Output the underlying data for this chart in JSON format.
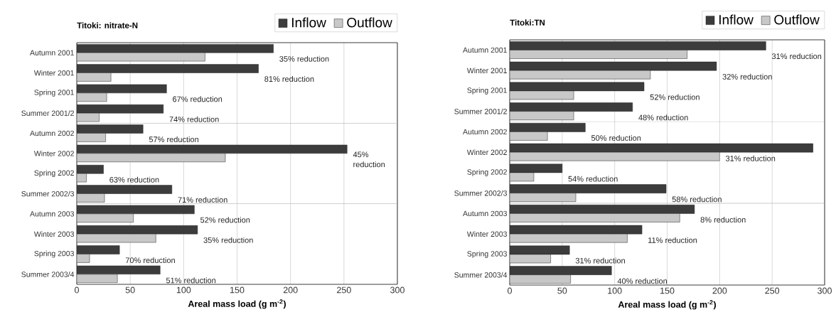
{
  "chart_data": [
    {
      "type": "bar",
      "orientation": "horizontal",
      "title": "Titoki: nitrate-N",
      "xlabel": "Areal mass load (g m$^{-2}$)",
      "categories": [
        "Autumn 2001",
        "Winter 2001",
        "Spring 2001",
        "Summer 2001/2",
        "Autumn 2002",
        "Winter 2002",
        "Spring 2002",
        "Summer 2002/3",
        "Autumn 2003",
        "Winter 2003",
        "Spring 2003",
        "Summer 2003/4"
      ],
      "series": [
        {
          "name": "Inflow",
          "color": "#3c3c3c",
          "values": [
            184,
            170,
            84,
            81,
            62,
            253,
            25,
            89,
            110,
            113,
            40,
            78
          ]
        },
        {
          "name": "Outflow",
          "color": "#c8c8c8",
          "values": [
            120,
            32,
            28,
            21,
            27,
            139,
            9,
            26,
            53,
            74,
            12,
            38
          ]
        }
      ],
      "xlim": [
        0,
        300
      ],
      "xticks": [
        0,
        50,
        100,
        150,
        200,
        250,
        300
      ],
      "grid": "x",
      "legend": "top right",
      "annotations": [
        "35% reduction",
        "81% reduction",
        "67% reduction",
        "74% reduction",
        "57% reduction",
        "45% reduction",
        "63% reduction",
        "71% reduction",
        "52% reduction",
        "35% reduction",
        "70% reduction",
        "51% reduction"
      ]
    },
    {
      "type": "bar",
      "orientation": "horizontal",
      "title": "Titoki:TN",
      "xlabel": "Areal mass load (g m$^{-2}$)",
      "categories": [
        "Autumn 2001",
        "Winter 2001",
        "Spring 2001",
        "Summer 2001/2",
        "Autumn 2002",
        "Winter 2002",
        "Spring 2002",
        "Summer 2002/3",
        "Autumn 2003",
        "Winter 2003",
        "Spring 2003",
        "Summer 2003/4"
      ],
      "series": [
        {
          "name": "Inflow",
          "color": "#3c3c3c",
          "values": [
            244,
            197,
            128,
            117,
            72,
            289,
            50,
            149,
            176,
            126,
            57,
            97
          ]
        },
        {
          "name": "Outflow",
          "color": "#c8c8c8",
          "values": [
            169,
            134,
            61,
            61,
            36,
            200,
            23,
            63,
            162,
            112,
            39,
            58
          ]
        }
      ],
      "xlim": [
        0,
        300
      ],
      "xticks": [
        0,
        50,
        100,
        150,
        200,
        250,
        300
      ],
      "grid": "x",
      "legend": "top right",
      "annotations": [
        "31% reduction",
        "32% reduction",
        "52% reduction",
        "48% reduction",
        "50% reduction",
        "31% reduction",
        "54% reduction",
        "58% reduction",
        "8% reduction",
        "11% reduction",
        "31% reduction",
        "40% reduction"
      ]
    }
  ]
}
